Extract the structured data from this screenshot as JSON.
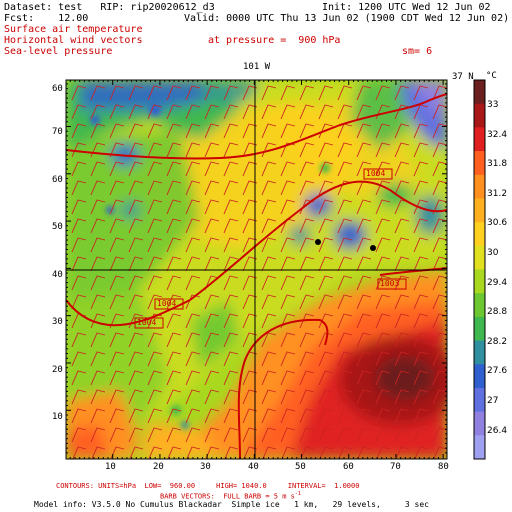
{
  "header": {
    "line1_left": "Dataset: test   RIP: rip20020612_d3",
    "line1_right": "Init: 1200 UTC Wed 12 Jun 02",
    "line2_left": "Fcst:    12.00",
    "line2_right": "Valid: 0000 UTC Thu 13 Jun 02 (1900 CDT Wed 12 Jun 02)",
    "field1": "Surface air temperature",
    "field2": "Horizontal wind vectors",
    "field3": "Sea-level pressure",
    "pressure": "at pressure =  900 hPa",
    "smoothing": "sm= 6"
  },
  "map": {
    "top_label": "101 W",
    "right_label": "37 N",
    "y_ticks": [
      "60",
      "50",
      "40",
      "30",
      "20",
      "10"
    ],
    "y_ticks_between": [
      "70"
    ],
    "x_ticks": [
      "10",
      "20",
      "30",
      "40",
      "50",
      "60",
      "70",
      "80"
    ],
    "contour_labels": [
      "1004",
      "1004",
      "1004",
      "1003"
    ]
  },
  "colorbar": {
    "unit": "°C",
    "labels": [
      "33",
      "32.4",
      "31.8",
      "31.2",
      "30.6",
      "30",
      "29.4",
      "28.8",
      "28.2",
      "27.6",
      "27",
      "26.4"
    ],
    "colors": [
      "#6c1f1f",
      "#a81818",
      "#e02020",
      "#ff6020",
      "#ff9020",
      "#ffb020",
      "#ffd020",
      "#e0e020",
      "#a8d820",
      "#6cc830",
      "#40b850",
      "#3090a0",
      "#3060d0",
      "#6070e0",
      "#9080e0",
      "#a0a0f0"
    ]
  },
  "footer": {
    "line1": "CONTOURS: UNITS=hPa  LOW=  960.00     HIGH= 1040.0     INTERVAL=  1.0000",
    "line2": "BARB VECTORS:  FULL BARB = 5 m s",
    "line3": "Model info: V3.5.0 No Cumulus Blackadar  Simple ice   1 km,   29 levels,     3 sec"
  }
}
